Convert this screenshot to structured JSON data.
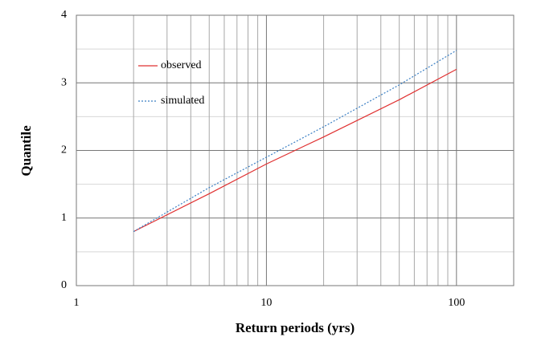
{
  "chart_data": {
    "type": "line",
    "xlabel": "Return periods (yrs)",
    "ylabel": "Quantile",
    "xscale": "log",
    "x": [
      2,
      5,
      10,
      20,
      50,
      100
    ],
    "series": [
      {
        "name": "observed",
        "color": "#e03030",
        "dash": "solid",
        "values": [
          0.8,
          1.36,
          1.8,
          2.2,
          2.75,
          3.2
        ]
      },
      {
        "name": "simulated",
        "color": "#3a7fc4",
        "dash": "dotted",
        "values": [
          0.8,
          1.45,
          1.9,
          2.35,
          2.97,
          3.48
        ]
      }
    ],
    "xlim": [
      1,
      200
    ],
    "xticks": [
      1,
      10,
      100
    ],
    "xminor": [
      2,
      3,
      4,
      5,
      6,
      7,
      8,
      9,
      20,
      30,
      40,
      50,
      60,
      70,
      80,
      90,
      200
    ],
    "ylim": [
      0,
      4
    ],
    "yticks": [
      0,
      1,
      2,
      3,
      4
    ],
    "yminor": [
      0.5,
      1.5,
      2.5,
      3.5
    ],
    "grid": true,
    "legend": "upper left"
  }
}
